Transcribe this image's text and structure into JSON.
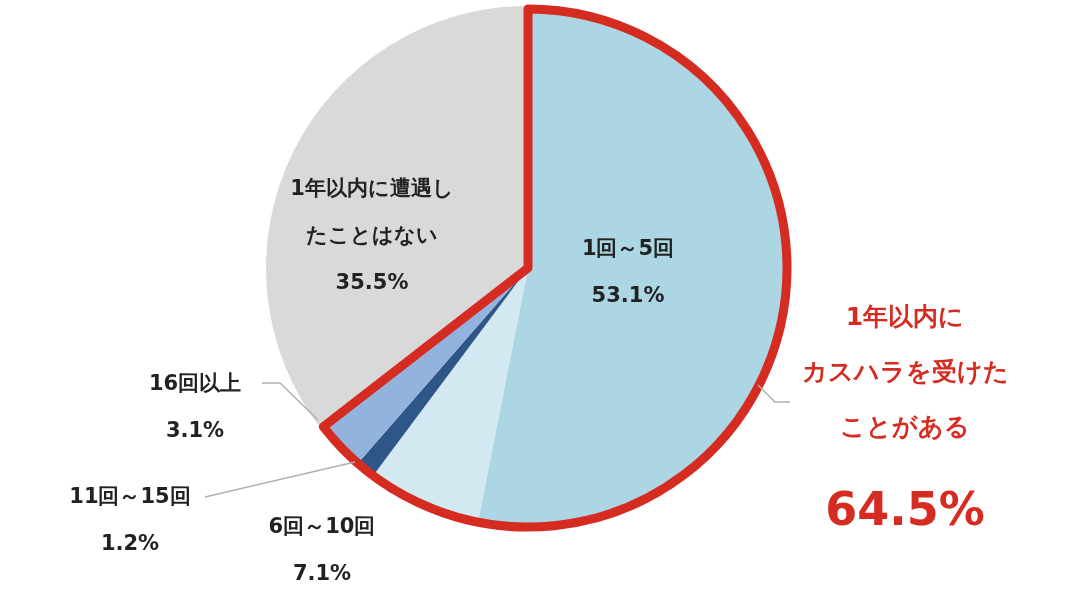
{
  "chart_data": {
    "type": "pie",
    "categories": [
      "1回～5回",
      "6回～10回",
      "11回～15回",
      "16回以上",
      "1年以内に遭遇したことはない"
    ],
    "values": [
      53.1,
      7.1,
      1.2,
      3.1,
      35.5
    ],
    "colors": [
      "#acd6e3",
      "#d3e9f2",
      "#2f5688",
      "#92b3dd",
      "#d9d9d9"
    ],
    "value_labels": [
      "53.1%",
      "7.1%",
      "1.2%",
      "3.1%",
      "35.5%"
    ],
    "annotations": [
      "1年以内にカスハラを受けたことがある",
      "64.5%"
    ]
  }
}
